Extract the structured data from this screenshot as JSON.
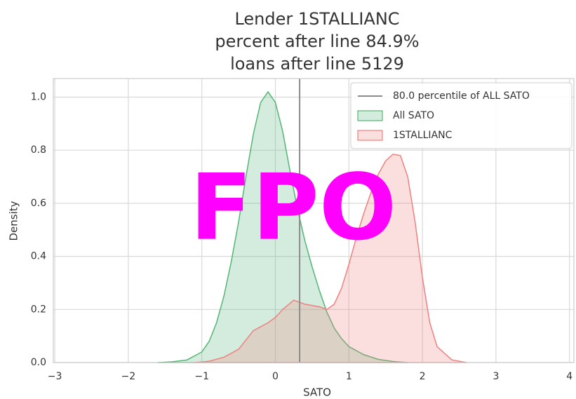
{
  "chart_data": {
    "type": "kde",
    "title": [
      "Lender 1STALLIANC",
      "percent after line 84.9%",
      "loans after line 5129"
    ],
    "xlabel": "SATO",
    "ylabel": "Density",
    "watermark": "FPO",
    "xlim": [
      -3.02,
      4.06
    ],
    "ylim": [
      0,
      1.07
    ],
    "xticks": [
      {
        "value": -3,
        "label": "−3"
      },
      {
        "value": -2,
        "label": "−2"
      },
      {
        "value": -1,
        "label": "−1"
      },
      0,
      1,
      2,
      3,
      4
    ],
    "yticks": [
      {
        "value": 0,
        "label": "0.0"
      },
      {
        "value": 0.2,
        "label": "0.2"
      },
      {
        "value": 0.4,
        "label": "0.4"
      },
      {
        "value": 0.6,
        "label": "0.6"
      },
      {
        "value": 0.8,
        "label": "0.8"
      },
      {
        "value": 1.0,
        "label": "1.0"
      }
    ],
    "grid": true,
    "legend": "upper right",
    "vline": {
      "name": "80.0 percentile of ALL SATO",
      "x": 0.33,
      "color": "#8c8c8c"
    },
    "series": [
      {
        "name": "All SATO",
        "color": "#55b576",
        "x": [
          -1.6,
          -1.4,
          -1.2,
          -1.0,
          -0.9,
          -0.8,
          -0.7,
          -0.6,
          -0.5,
          -0.4,
          -0.3,
          -0.2,
          -0.1,
          0.0,
          0.1,
          0.2,
          0.3,
          0.4,
          0.5,
          0.6,
          0.7,
          0.8,
          0.9,
          1.0,
          1.2,
          1.4,
          1.6,
          1.8
        ],
        "values": [
          0,
          0.003,
          0.01,
          0.04,
          0.08,
          0.15,
          0.25,
          0.38,
          0.53,
          0.7,
          0.86,
          0.98,
          1.02,
          0.98,
          0.87,
          0.72,
          0.58,
          0.46,
          0.36,
          0.27,
          0.19,
          0.13,
          0.09,
          0.06,
          0.03,
          0.012,
          0.004,
          0
        ]
      },
      {
        "name": "1STALLIANC",
        "color": "#f08080",
        "x": [
          -1.1,
          -0.9,
          -0.7,
          -0.5,
          -0.3,
          -0.1,
          0.0,
          0.1,
          0.25,
          0.4,
          0.6,
          0.7,
          0.8,
          0.9,
          1.0,
          1.1,
          1.2,
          1.3,
          1.4,
          1.5,
          1.6,
          1.7,
          1.8,
          1.9,
          2.0,
          2.1,
          2.2,
          2.4,
          2.6
        ],
        "values": [
          0,
          0.005,
          0.02,
          0.05,
          0.12,
          0.15,
          0.17,
          0.2,
          0.235,
          0.22,
          0.21,
          0.2,
          0.22,
          0.28,
          0.37,
          0.47,
          0.56,
          0.64,
          0.71,
          0.76,
          0.785,
          0.78,
          0.7,
          0.53,
          0.32,
          0.15,
          0.06,
          0.01,
          0
        ]
      }
    ]
  }
}
